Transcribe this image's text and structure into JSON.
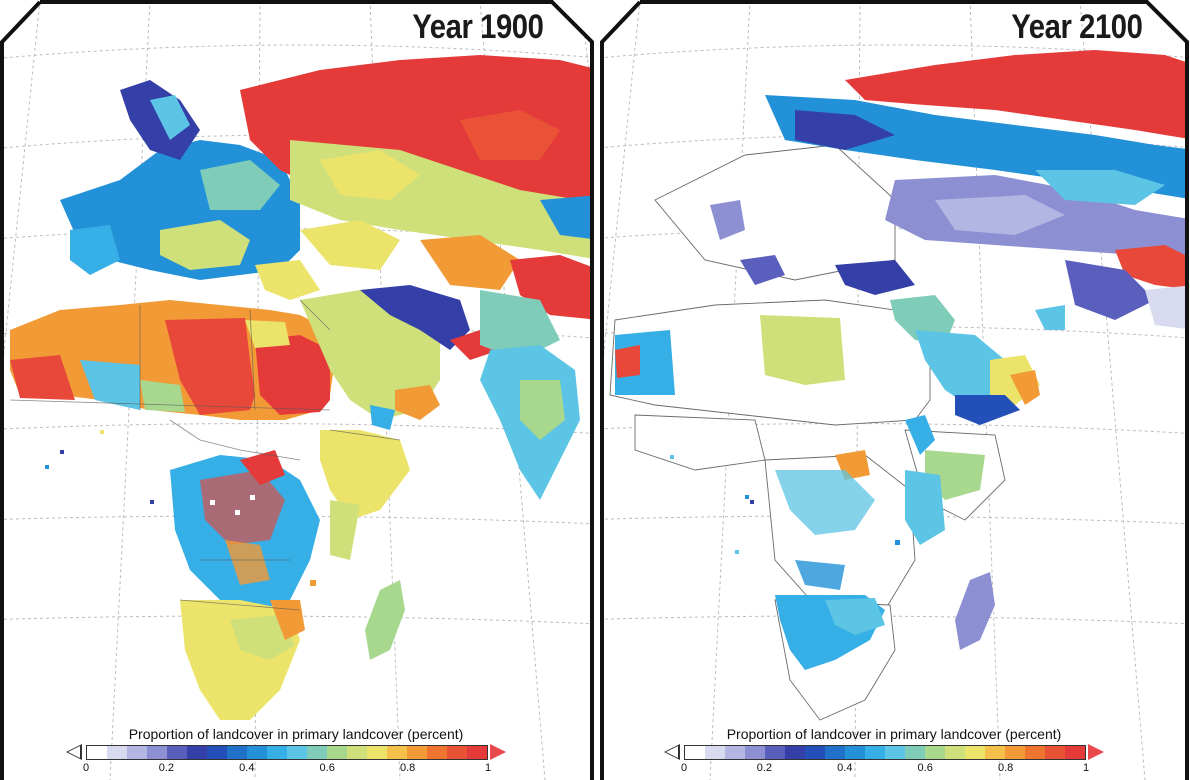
{
  "panels": [
    {
      "id": "p1900",
      "title": "Year 1900"
    },
    {
      "id": "p2100",
      "title": "Year 2100"
    }
  ],
  "legend": {
    "title": "Proportion of landcover in primary landcover (percent)",
    "ticks": [
      "0",
      "0.2",
      "0.4",
      "0.6",
      "0.8",
      "1"
    ],
    "colors": [
      "#ffffff",
      "#d8daf0",
      "#b3b6e2",
      "#8c90d2",
      "#5a5fbe",
      "#3440a8",
      "#2350b8",
      "#1f72c8",
      "#2391d8",
      "#36aee6",
      "#5cc4e4",
      "#7fcdb8",
      "#a8d88e",
      "#cfe07a",
      "#ece46a",
      "#f5c04a",
      "#f29a36",
      "#ee7430",
      "#ea5236",
      "#e43a3a"
    ]
  },
  "chart_data": {
    "type": "map",
    "region": "Europe, Africa, Middle East and Northern Asia",
    "panels": [
      "Year 1900",
      "Year 2100"
    ],
    "colorbar": {
      "min": 0,
      "max": 1,
      "ticks": [
        0,
        0.2,
        0.4,
        0.6,
        0.8,
        1
      ],
      "extend": "both",
      "low_end_color": "#ffffff",
      "high_end_color": "#e43a3a"
    }
  }
}
